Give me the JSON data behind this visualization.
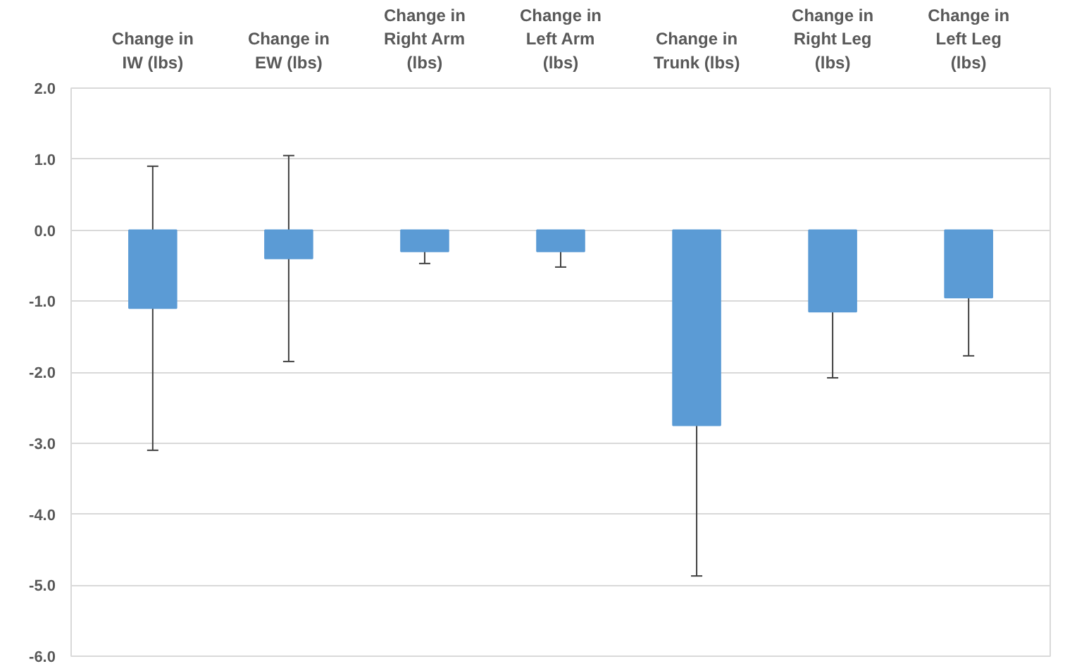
{
  "chart_data": {
    "type": "bar",
    "categories": [
      "Change in IW (lbs)",
      "Change in EW (lbs)",
      "Change in Right Arm (lbs)",
      "Change in Left Arm (lbs)",
      "Change in Trunk (lbs)",
      "Change in Right Leg (lbs)",
      "Change in Left Leg (lbs)"
    ],
    "values": [
      -1.1,
      -0.4,
      -0.3,
      -0.3,
      -2.75,
      -1.15,
      -0.95
    ],
    "errors": [
      2.0,
      1.45,
      0.17,
      0.22,
      2.12,
      0.93,
      0.82
    ],
    "color": "#5b9bd5",
    "ylim": [
      -6,
      2
    ],
    "yticks": [
      {
        "value": 2,
        "label": "2.0"
      },
      {
        "value": 1,
        "label": "1.0"
      },
      {
        "value": 0,
        "label": "0.0"
      },
      {
        "value": -1,
        "label": "-1.0"
      },
      {
        "value": -2,
        "label": "-2.0"
      },
      {
        "value": -3,
        "label": "-3.0"
      },
      {
        "value": -4,
        "label": "-4.0"
      },
      {
        "value": -5,
        "label": "-5.0"
      },
      {
        "value": -6,
        "label": "-6.0"
      }
    ],
    "grid": "y"
  }
}
